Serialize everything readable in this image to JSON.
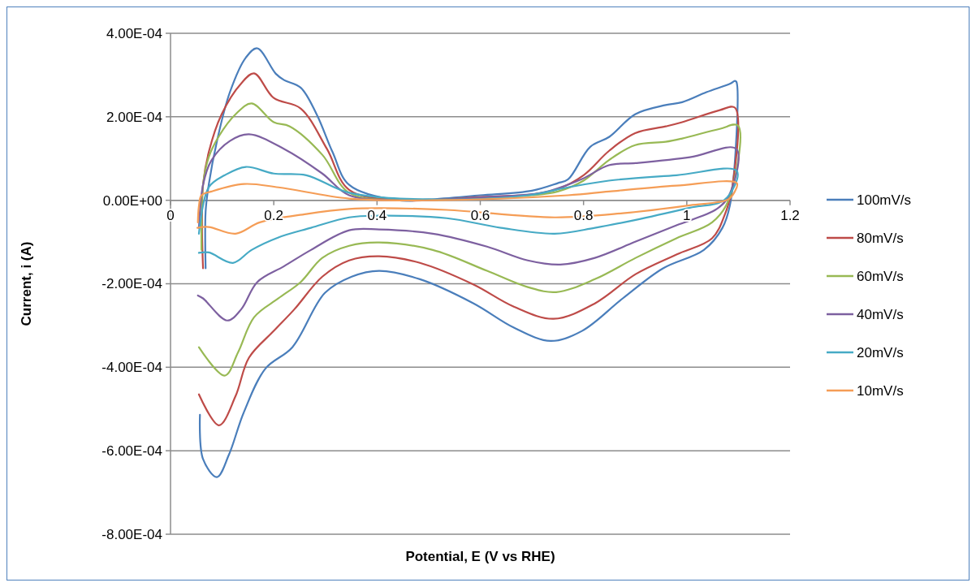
{
  "chart_data": {
    "type": "line",
    "xlabel": "Potential, E (V vs RHE)",
    "ylabel": "Current, i (A)",
    "xlim": [
      0,
      1.2
    ],
    "xticks": [
      0,
      0.2,
      0.4,
      0.6,
      0.8,
      1,
      1.2
    ],
    "ylim": [
      -0.0008,
      0.0004
    ],
    "yticks": [
      {
        "value": 0.0004,
        "label": "4.00E-04"
      },
      {
        "value": 0.0002,
        "label": "2.00E-04"
      },
      {
        "value": 0,
        "label": "0.00E+00"
      },
      {
        "value": -0.0002,
        "label": "-2.00E-04"
      },
      {
        "value": -0.0004,
        "label": "-4.00E-04"
      },
      {
        "value": -0.0006,
        "label": "-6.00E-04"
      },
      {
        "value": -0.0008,
        "label": "-8.00E-04"
      }
    ],
    "grid": "y",
    "legend": "right",
    "marker": "none",
    "line_style": "solid",
    "series": [
      {
        "name": "100mV/s",
        "color": "#4a7ebb",
        "x": [
          0.057,
          0.063,
          0.09,
          0.113,
          0.142,
          0.184,
          0.236,
          0.299,
          0.351,
          0.404,
          0.483,
          0.587,
          0.665,
          0.736,
          0.797,
          0.876,
          0.954,
          1.033,
          1.069,
          1.085,
          1.096,
          1.093,
          1.085,
          1.038,
          0.991,
          0.959,
          0.9,
          0.85,
          0.813,
          0.77,
          0.75,
          0.7,
          0.6,
          0.5,
          0.44,
          0.346,
          0.314,
          0.283,
          0.252,
          0.22,
          0.204,
          0.168,
          0.146,
          0.115,
          0.09,
          0.074,
          0.068,
          0.068
        ],
        "values": [
          -0.000514,
          -0.00062,
          -0.000663,
          -0.00061,
          -0.000508,
          -0.000403,
          -0.000352,
          -0.000222,
          -0.000183,
          -0.000169,
          -0.000189,
          -0.000247,
          -0.000305,
          -0.000337,
          -0.000313,
          -0.000235,
          -0.000163,
          -0.000119,
          -6.6e-05,
          -2e-06,
          0.000284,
          0.000286,
          0.00028,
          0.000259,
          0.000235,
          0.000228,
          0.000206,
          0.000152,
          0.000128,
          5e-05,
          4.1e-05,
          2.3e-05,
          1.2e-05,
          2e-06,
          0,
          3.7e-05,
          0.000115,
          0.000206,
          0.00027,
          0.000288,
          0.000303,
          0.000364,
          0.000342,
          0.000259,
          0.000142,
          3.7e-05,
          -2.7e-05,
          -0.000163
        ]
      },
      {
        "name": "80mV/s",
        "color": "#be4b48",
        "x": [
          0.055,
          0.094,
          0.126,
          0.152,
          0.2,
          0.24,
          0.294,
          0.346,
          0.404,
          0.483,
          0.587,
          0.665,
          0.742,
          0.822,
          0.901,
          0.98,
          1.049,
          1.074,
          1.088,
          1.093,
          1.064,
          0.991,
          0.959,
          0.9,
          0.85,
          0.8,
          0.75,
          0.7,
          0.6,
          0.45,
          0.346,
          0.303,
          0.252,
          0.2,
          0.162,
          0.137,
          0.099,
          0.074,
          0.063,
          0.061,
          0.063
        ],
        "values": [
          -0.000465,
          -0.000539,
          -0.000469,
          -0.000377,
          -0.000313,
          -0.000261,
          -0.000183,
          -0.000144,
          -0.000134,
          -0.00015,
          -0.000202,
          -0.000255,
          -0.000284,
          -0.000247,
          -0.000177,
          -0.00013,
          -9.1e-05,
          -3.3e-05,
          3.1e-05,
          0.000222,
          0.000216,
          0.000187,
          0.000177,
          0.000161,
          0.000119,
          6e-05,
          2.7e-05,
          1.4e-05,
          8e-06,
          0,
          2.5e-05,
          0.000123,
          0.00022,
          0.000245,
          0.000304,
          0.00028,
          0.000206,
          0.000115,
          3.7e-05,
          -6.6e-05,
          -0.000163
        ]
      },
      {
        "name": "60mV/s",
        "color": "#98b954",
        "x": [
          0.055,
          0.105,
          0.131,
          0.162,
          0.209,
          0.252,
          0.294,
          0.346,
          0.404,
          0.508,
          0.613,
          0.692,
          0.747,
          0.822,
          0.901,
          0.98,
          1.049,
          1.08,
          1.099,
          1.064,
          0.991,
          0.959,
          0.9,
          0.85,
          0.8,
          0.75,
          0.7,
          0.6,
          0.45,
          0.346,
          0.294,
          0.231,
          0.2,
          0.157,
          0.126,
          0.094,
          0.074,
          0.063,
          0.06
        ],
        "values": [
          -0.000352,
          -0.00042,
          -0.000364,
          -0.00028,
          -0.000235,
          -0.000196,
          -0.000138,
          -0.000109,
          -0.000101,
          -0.000119,
          -0.000169,
          -0.000208,
          -0.00022,
          -0.000189,
          -0.000138,
          -9.1e-05,
          -5.3e-05,
          -2e-06,
          0.000179,
          0.000171,
          0.000148,
          0.00014,
          0.000132,
          9.7e-05,
          4.7e-05,
          2.1e-05,
          1.2e-05,
          6e-06,
          0,
          1.8e-05,
          0.000109,
          0.000177,
          0.000187,
          0.000232,
          0.000206,
          0.000154,
          0.000103,
          3.7e-05,
          -0.000119
        ]
      },
      {
        "name": "40mV/s",
        "color": "#7d60a0",
        "x": [
          0.053,
          0.063,
          0.11,
          0.137,
          0.168,
          0.22,
          0.272,
          0.346,
          0.404,
          0.508,
          0.613,
          0.692,
          0.755,
          0.822,
          0.901,
          0.98,
          1.058,
          1.082,
          1.096,
          1.006,
          0.901,
          0.849,
          0.797,
          0.719,
          0.613,
          0.456,
          0.346,
          0.294,
          0.22,
          0.152,
          0.115,
          0.079,
          0.063,
          0.055
        ],
        "values": [
          -0.000228,
          -0.000235,
          -0.000288,
          -0.000261,
          -0.000196,
          -0.000158,
          -0.000119,
          -7.2e-05,
          -7e-05,
          -8e-05,
          -0.000111,
          -0.000144,
          -0.000154,
          -0.000138,
          -9.9e-05,
          -6e-05,
          -2.1e-05,
          1.2e-05,
          0.000123,
          0.000103,
          8.9e-05,
          8.4e-05,
          5.1e-05,
          1.8e-05,
          8e-06,
          0,
          1.2e-05,
          6.4e-05,
          0.000123,
          0.000158,
          0.000142,
          9.5e-05,
          3.7e-05,
          -6.6e-05
        ]
      },
      {
        "name": "20mV/s",
        "color": "#46aac5",
        "x": [
          0.055,
          0.074,
          0.121,
          0.157,
          0.209,
          0.272,
          0.346,
          0.404,
          0.535,
          0.64,
          0.744,
          0.822,
          0.901,
          1.006,
          1.074,
          1.097,
          0.98,
          0.849,
          0.77,
          0.692,
          0.508,
          0.346,
          0.263,
          0.2,
          0.146,
          0.105,
          0.074,
          0.055
        ],
        "values": [
          -0.000126,
          -0.000125,
          -0.00015,
          -0.000119,
          -8.9e-05,
          -6.6e-05,
          -4.1e-05,
          -3.7e-05,
          -4.3e-05,
          -6.6e-05,
          -8e-05,
          -6.6e-05,
          -4.7e-05,
          -1.8e-05,
          2e-06,
          7e-05,
          6e-05,
          4.7e-05,
          3.1e-05,
          1.2e-05,
          2e-06,
          1.8e-05,
          6e-05,
          6.4e-05,
          8e-05,
          6e-05,
          3.1e-05,
          -8e-05
        ]
      },
      {
        "name": "10mV/s",
        "color": "#f59d56",
        "x": [
          0.052,
          0.074,
          0.126,
          0.173,
          0.263,
          0.346,
          0.404,
          0.535,
          0.744,
          0.876,
          1.006,
          1.08,
          1.093,
          1.097,
          0.98,
          0.849,
          0.77,
          0.508,
          0.346,
          0.209,
          0.142,
          0.079,
          0.06,
          0.055,
          0.053
        ],
        "values": [
          -6.6e-05,
          -6.4e-05,
          -8e-05,
          -5.3e-05,
          -3.3e-05,
          -2.1e-05,
          -1.9e-05,
          -2.3e-05,
          -4.1e-05,
          -3.1e-05,
          -1.2e-05,
          2e-06,
          2.1e-05,
          4.1e-05,
          3.5e-05,
          2.1e-05,
          1.2e-05,
          0,
          4e-06,
          3.1e-05,
          3.9e-05,
          2.1e-05,
          1.2e-05,
          -1.4e-05,
          -5.3e-05
        ]
      }
    ]
  }
}
